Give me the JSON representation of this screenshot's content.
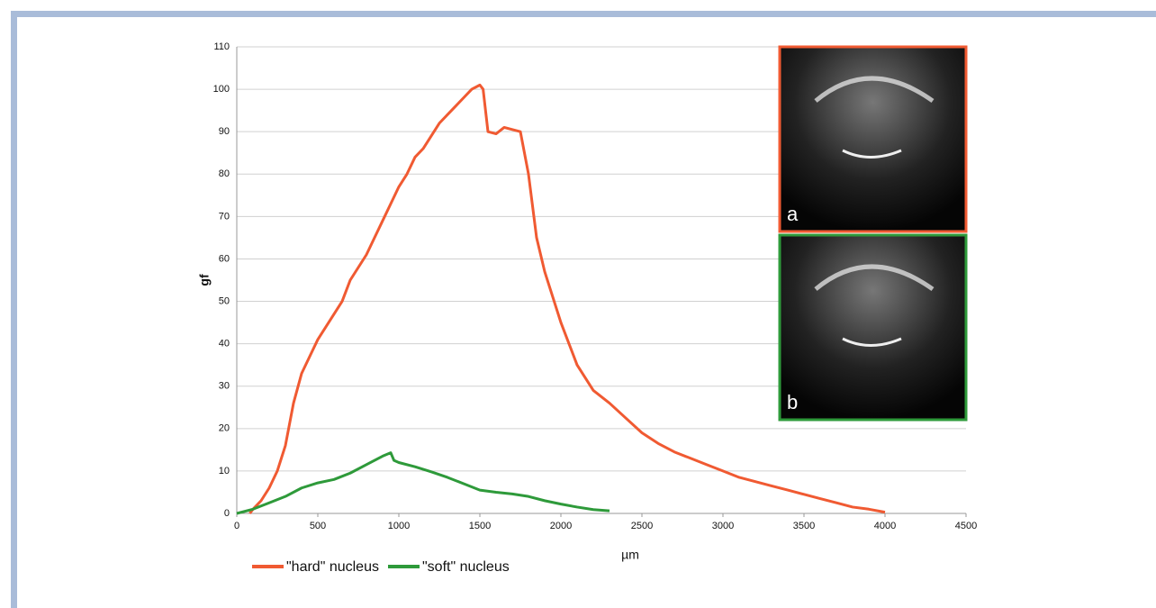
{
  "chart_data": {
    "type": "line",
    "xlabel": "µm",
    "ylabel": "gf",
    "xlim": [
      0,
      4500
    ],
    "xticks": [
      0,
      500,
      1000,
      1500,
      2000,
      2500,
      3000,
      3500,
      4000,
      4500
    ],
    "ylim": [
      0,
      110
    ],
    "yticks": [
      0,
      10,
      20,
      30,
      40,
      50,
      60,
      70,
      80,
      90,
      100,
      110
    ],
    "grid": true,
    "legend": "bottom-left",
    "annotations": [
      "a",
      "b"
    ],
    "series": [
      {
        "name": "\"hard\" nucleus",
        "color": "#f05a32",
        "x": [
          80,
          100,
          150,
          200,
          250,
          300,
          350,
          400,
          450,
          500,
          550,
          600,
          650,
          700,
          750,
          800,
          850,
          900,
          950,
          1000,
          1050,
          1100,
          1150,
          1200,
          1250,
          1300,
          1350,
          1400,
          1450,
          1500,
          1520,
          1550,
          1600,
          1650,
          1700,
          1750,
          1800,
          1850,
          1900,
          1950,
          2000,
          2050,
          2100,
          2150,
          2200,
          2300,
          2400,
          2500,
          2600,
          2700,
          2800,
          2900,
          3000,
          3100,
          3200,
          3300,
          3400,
          3500,
          3600,
          3700,
          3800,
          3900,
          4000
        ],
        "values": [
          0,
          1,
          3,
          6,
          10,
          16,
          26,
          33,
          37,
          41,
          44,
          47,
          50,
          55,
          58,
          61,
          65,
          69,
          73,
          77,
          80,
          84,
          86,
          89,
          92,
          94,
          96,
          98,
          100,
          101,
          100,
          90,
          89.5,
          91,
          90.5,
          90,
          80,
          65,
          57,
          51,
          45,
          40,
          35,
          32,
          29,
          26,
          22.5,
          19,
          16.5,
          14.5,
          13,
          11.5,
          10,
          8.5,
          7.5,
          6.5,
          5.5,
          4.5,
          3.5,
          2.5,
          1.5,
          1,
          0.3
        ]
      },
      {
        "name": "\"soft\" nucleus",
        "color": "#2e9a3a",
        "x": [
          0,
          100,
          200,
          300,
          400,
          500,
          600,
          700,
          800,
          900,
          950,
          970,
          1000,
          1100,
          1200,
          1300,
          1400,
          1500,
          1600,
          1700,
          1800,
          1900,
          2000,
          2100,
          2200,
          2300
        ],
        "values": [
          0,
          1,
          2.5,
          4,
          6,
          7.2,
          8,
          9.5,
          11.5,
          13.5,
          14.3,
          12.5,
          12,
          11,
          9.8,
          8.5,
          7,
          5.5,
          5,
          4.6,
          4,
          3,
          2.2,
          1.5,
          0.9,
          0.6
        ]
      }
    ]
  }
}
